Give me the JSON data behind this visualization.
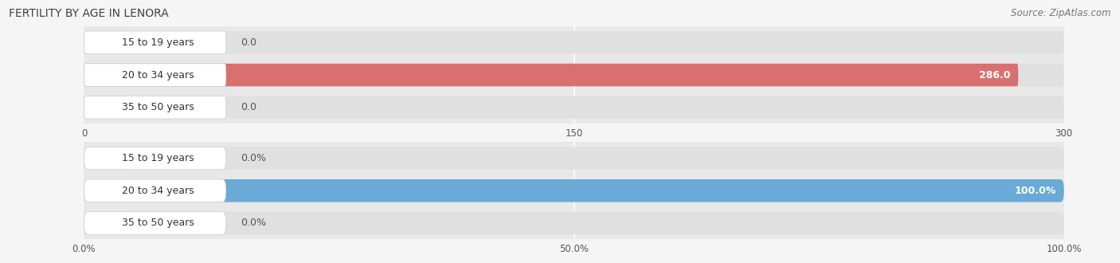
{
  "title": "FERTILITY BY AGE IN LENORA",
  "source": "Source: ZipAtlas.com",
  "top_chart": {
    "categories": [
      "15 to 19 years",
      "20 to 34 years",
      "35 to 50 years"
    ],
    "values": [
      0.0,
      286.0,
      0.0
    ],
    "xlim": [
      0,
      300
    ],
    "xticks": [
      0.0,
      150.0,
      300.0
    ],
    "bar_color_full": "#d9706f",
    "bar_color_empty": "#e5aaaa",
    "value_labels": [
      "0.0",
      "286.0",
      "0.0"
    ]
  },
  "bottom_chart": {
    "categories": [
      "15 to 19 years",
      "20 to 34 years",
      "35 to 50 years"
    ],
    "values": [
      0.0,
      100.0,
      0.0
    ],
    "xlim": [
      0,
      100
    ],
    "xticks": [
      0.0,
      50.0,
      100.0
    ],
    "xtick_labels": [
      "0.0%",
      "50.0%",
      "100.0%"
    ],
    "bar_color_full": "#6aaad6",
    "bar_color_empty": "#a8c8e8",
    "value_labels": [
      "0.0%",
      "100.0%",
      "0.0%"
    ]
  },
  "fig_bg_color": "#e8e8e8",
  "chart_bg_color": "#ebebeb",
  "bar_bg_color": "#e0e0e0",
  "white_pill_color": "#ffffff",
  "title_fontsize": 10,
  "source_fontsize": 8.5,
  "label_fontsize": 9,
  "tick_fontsize": 8.5
}
